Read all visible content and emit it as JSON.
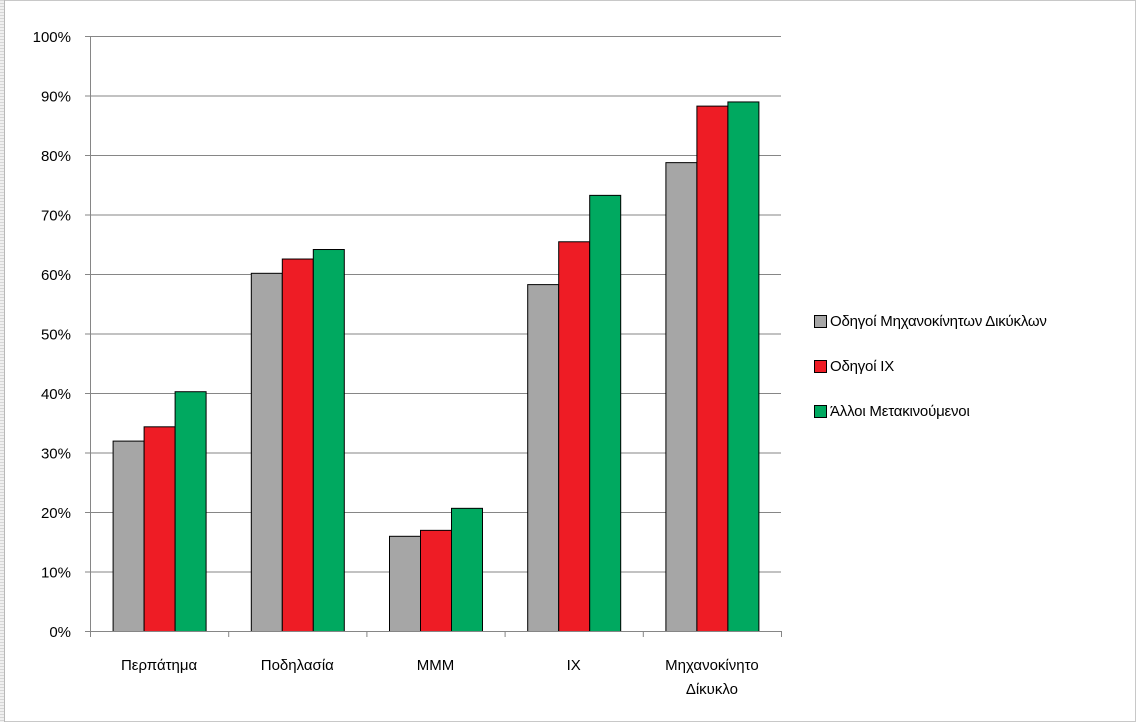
{
  "chart_data": {
    "type": "bar",
    "title": "",
    "xlabel": "",
    "ylabel": "",
    "categories": [
      [
        "Περπάτημα"
      ],
      [
        "Ποδηλασία"
      ],
      [
        "ΜΜΜ"
      ],
      [
        "ΙΧ"
      ],
      [
        "Μηχανοκίνητο",
        "Δίκυκλο"
      ]
    ],
    "series": [
      {
        "name": "Οδηγοί Μηχανοκίνητων Δικύκλων",
        "color": "#a6a6a6",
        "values": [
          32,
          60.2,
          16,
          58.3,
          78.8
        ]
      },
      {
        "name": "Οδηγοί ΙΧ",
        "color": "#ee1c25",
        "values": [
          34.4,
          62.6,
          17,
          65.5,
          88.3
        ]
      },
      {
        "name": "Άλλοι Μετακινούμενοι",
        "color": "#00a960",
        "values": [
          40.3,
          64.2,
          20.7,
          73.3,
          89
        ]
      }
    ],
    "ylim": [
      0,
      100
    ],
    "yticks": [
      0,
      10,
      20,
      30,
      40,
      50,
      60,
      70,
      80,
      90,
      100
    ],
    "ytick_labels": [
      "0%",
      "10%",
      "20%",
      "30%",
      "40%",
      "50%",
      "60%",
      "70%",
      "80%",
      "90%",
      "100%"
    ],
    "grid": true,
    "legend_position": "right"
  }
}
